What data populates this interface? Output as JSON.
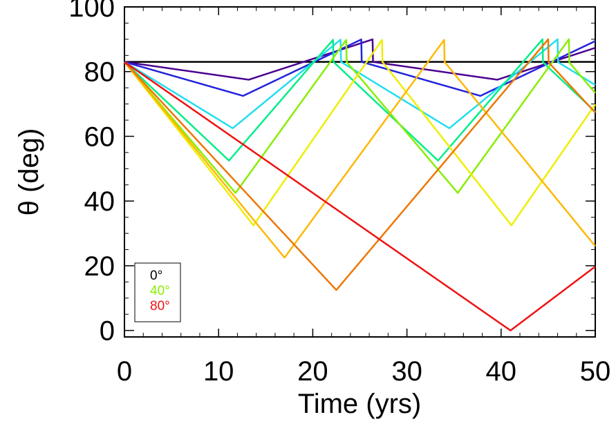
{
  "chart_data": {
    "type": "line",
    "xlabel": "Time (yrs)",
    "ylabel": "θ (deg)",
    "xlim": [
      0,
      50
    ],
    "ylim": [
      -2,
      100
    ],
    "x_ticks": [
      "0",
      "10",
      "20",
      "30",
      "40",
      "50"
    ],
    "y_ticks": [
      "0",
      "20",
      "40",
      "60",
      "80",
      "100"
    ],
    "x_tick_values": [
      0,
      10,
      20,
      30,
      40,
      50
    ],
    "y_tick_values": [
      0,
      20,
      40,
      60,
      80,
      100
    ],
    "x_minor_step": 2,
    "y_minor_step": 5,
    "legend": {
      "placement": "bottom-left",
      "entries": [
        {
          "label": "0°",
          "color": "#000000"
        },
        {
          "label": "40°",
          "color": "#88ee00"
        },
        {
          "label": "80°",
          "color": "#ee1111"
        }
      ]
    },
    "series": [
      {
        "color": "#000000",
        "y0": 83,
        "ymin": 83,
        "period": 50,
        "shift": 0
      },
      {
        "color": "#4a0090",
        "y0": 83,
        "ymin": 77.5,
        "period": 26.4,
        "shift": 3
      },
      {
        "color": "#2222dd",
        "y0": 83,
        "ymin": 72.5,
        "period": 25.2,
        "shift": 5
      },
      {
        "color": "#22ddee",
        "y0": 83,
        "ymin": 62.5,
        "period": 23.0,
        "shift": 6
      },
      {
        "color": "#00ee88",
        "y0": 83,
        "ymin": 52.5,
        "period": 22.2,
        "shift": 7
      },
      {
        "color": "#88ee00",
        "y0": 83,
        "ymin": 42.5,
        "period": 23.6,
        "shift": 8
      },
      {
        "color": "#eeee00",
        "y0": 83,
        "ymin": 32.5,
        "period": 27.4,
        "shift": 9
      },
      {
        "color": "#ffb800",
        "y0": 83,
        "ymin": 22.5,
        "period": 34.0,
        "shift": 10
      },
      {
        "color": "#ee7700",
        "y0": 83,
        "ymin": 12.5,
        "period": 45.0,
        "shift": 11
      },
      {
        "color": "#ee1111",
        "y0": 83,
        "ymin": 0,
        "period": 82.0,
        "shift": 12
      }
    ]
  }
}
